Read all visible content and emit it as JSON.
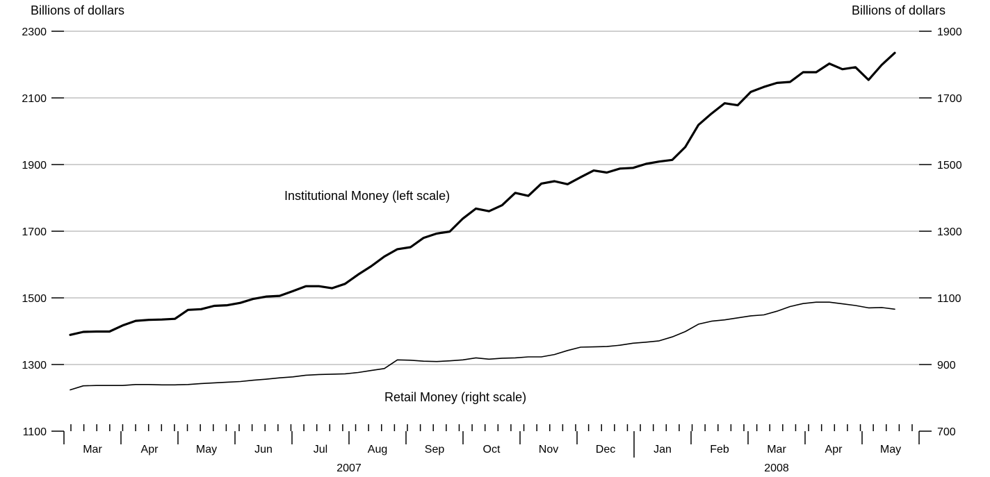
{
  "chart_data": {
    "type": "line",
    "left_axis": {
      "unit": "Billions of dollars",
      "ticks": [
        "1100",
        "1300",
        "1500",
        "1700",
        "1900",
        "2100",
        "2300"
      ],
      "min": 1100,
      "max": 2300
    },
    "right_axis": {
      "unit": "Billions of dollars",
      "ticks": [
        "700",
        "900",
        "1100",
        "1300",
        "1500",
        "1700",
        "1900"
      ],
      "min": 700,
      "max": 1900
    },
    "x_month_labels": [
      "Mar",
      "Apr",
      "May",
      "Jun",
      "Jul",
      "Aug",
      "Sep",
      "Oct",
      "Nov",
      "Dec",
      "Jan",
      "Feb",
      "Mar",
      "Apr",
      "May"
    ],
    "x_year_labels": [
      "2007",
      "2008"
    ],
    "annotations": {
      "institutional": "Institutional Money (left scale)",
      "retail": "Retail Money (right scale)"
    },
    "grid": true,
    "series": [
      {
        "name": "Institutional Money",
        "axis": "left",
        "color": "#000000",
        "values": [
          1389,
          1398,
          1399,
          1399,
          1417,
          1431,
          1434,
          1435,
          1437,
          1464,
          1466,
          1476,
          1478,
          1485,
          1497,
          1504,
          1506,
          1520,
          1535,
          1535,
          1529,
          1542,
          1570,
          1595,
          1624,
          1646,
          1652,
          1680,
          1693,
          1699,
          1738,
          1768,
          1760,
          1778,
          1815,
          1806,
          1843,
          1850,
          1841,
          1862,
          1882,
          1876,
          1888,
          1890,
          1902,
          1909,
          1914,
          1953,
          2019,
          2053,
          2084,
          2078,
          2118,
          2133,
          2145,
          2148,
          2177,
          2177,
          2203,
          2186,
          2192,
          2154,
          2199,
          2235
        ]
      },
      {
        "name": "Retail Money",
        "axis": "right",
        "color": "#000000",
        "values": [
          824,
          836,
          837,
          837,
          837,
          840,
          840,
          839,
          839,
          840,
          843,
          845,
          847,
          849,
          853,
          856,
          860,
          863,
          868,
          870,
          871,
          872,
          876,
          882,
          888,
          914,
          913,
          910,
          909,
          911,
          914,
          920,
          916,
          919,
          920,
          923,
          923,
          930,
          942,
          952,
          953,
          954,
          958,
          964,
          967,
          971,
          983,
          999,
          1021,
          1030,
          1034,
          1040,
          1046,
          1049,
          1060,
          1074,
          1083,
          1087,
          1087,
          1082,
          1077,
          1070,
          1071,
          1066
        ]
      }
    ]
  }
}
